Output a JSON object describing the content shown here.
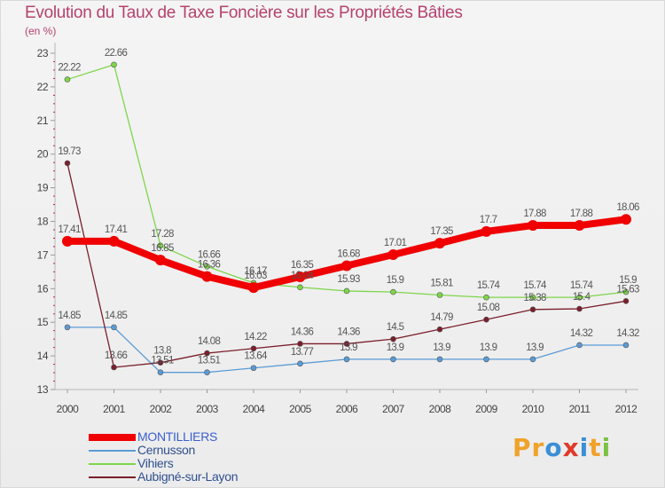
{
  "title": "Evolution du Taux de Taxe Foncière sur les Propriétés Bâties",
  "unit_label": "(en %)",
  "logo": {
    "letters": [
      "P",
      "r",
      "o",
      "x",
      "i",
      "t",
      "i"
    ],
    "colors": [
      "#f0a22a",
      "#f0a22a",
      "#3a8fd6",
      "#e03a2a",
      "#3a8fd6",
      "#f0a22a",
      "#7bc142"
    ]
  },
  "chart_data": {
    "type": "line",
    "title": "Evolution du Taux de Taxe Foncière sur les Propriétés Bâties",
    "ylabel": "(en %)",
    "categories": [
      "2000",
      "2001",
      "2002",
      "2003",
      "2004",
      "2005",
      "2006",
      "2007",
      "2008",
      "2009",
      "2010",
      "2011",
      "2012"
    ],
    "ylim": [
      13,
      23
    ],
    "yticks": [
      13,
      14,
      15,
      16,
      17,
      18,
      19,
      20,
      21,
      22,
      23
    ],
    "grid": false,
    "series": [
      {
        "name": "MONTILLIERS",
        "color": "#f00000",
        "values": [
          17.41,
          17.41,
          16.85,
          16.36,
          16.03,
          16.35,
          16.68,
          17.01,
          17.35,
          17.7,
          17.88,
          17.88,
          18.06
        ],
        "labels": [
          "17.41",
          "17.41",
          "16.85",
          "16.36",
          "16.03",
          "16.35",
          "16.68",
          "17.01",
          "17.35",
          "17.7",
          "17.88",
          "17.88",
          "18.06"
        ]
      },
      {
        "name": "Cernusson",
        "color": "#5b9bd5",
        "values": [
          14.85,
          14.85,
          13.51,
          13.51,
          13.64,
          13.77,
          13.9,
          13.9,
          13.9,
          13.9,
          13.9,
          14.32,
          14.32
        ],
        "labels": [
          "14.85",
          "14.85",
          "13.51",
          "13.51",
          "13.64",
          "13.77",
          "13.9",
          "13.9",
          "13.9",
          "13.9",
          "13.9",
          "14.32",
          "14.32"
        ]
      },
      {
        "name": "Vihiers",
        "color": "#7dd64a",
        "values": [
          22.22,
          22.66,
          17.28,
          16.66,
          16.17,
          16.04,
          15.93,
          15.9,
          15.81,
          15.74,
          15.74,
          15.74,
          15.9
        ],
        "labels": [
          "22.22",
          "22.66",
          "17.28",
          "16.66",
          "16.17",
          "16.04",
          "15.93",
          "15.9",
          "15.81",
          "15.74",
          "15.74",
          "15.74",
          "15.9"
        ]
      },
      {
        "name": "Aubigné-sur-Layon",
        "color": "#7a1f2b",
        "values": [
          19.73,
          13.66,
          13.8,
          14.08,
          14.22,
          14.36,
          14.36,
          14.5,
          14.79,
          15.08,
          15.38,
          15.4,
          15.63
        ],
        "labels": [
          "19.73",
          "13.66",
          "13.8",
          "14.08",
          "14.22",
          "14.36",
          "14.36",
          "14.5",
          "14.79",
          "15.08",
          "15.38",
          "15.4",
          "15.63"
        ]
      }
    ]
  }
}
